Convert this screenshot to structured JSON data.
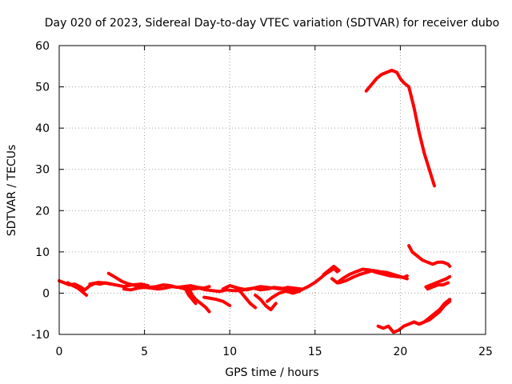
{
  "chart_data": {
    "type": "line",
    "title": "Day 020 of 2023, Sidereal Day-to-day VTEC variation (SDTVAR) for receiver dubo",
    "xlabel": "GPS time / hours",
    "ylabel": "SDTVAR / TECUs",
    "xlim": [
      0,
      25
    ],
    "ylim": [
      -10,
      60
    ],
    "xticks": [
      0,
      5,
      10,
      15,
      20,
      25
    ],
    "yticks": [
      -10,
      0,
      10,
      20,
      30,
      40,
      50,
      60
    ],
    "grid": true,
    "color": "#ff0000",
    "series": [
      {
        "x": [
          0,
          0.3,
          0.6,
          0.9,
          1.2,
          1.5,
          1.8,
          2.1,
          2.4,
          2.7,
          3.0
        ],
        "y": [
          3.0,
          2.5,
          2.0,
          2.2,
          1.6,
          0.8,
          1.8,
          2.4,
          2.2,
          2.5,
          2.2
        ]
      },
      {
        "x": [
          0.5,
          0.8,
          1.1,
          1.4,
          1.6
        ],
        "y": [
          2.5,
          1.8,
          1.2,
          0.2,
          -0.5
        ]
      },
      {
        "x": [
          1.8,
          2.3,
          2.8,
          3.3,
          3.8,
          4.3,
          4.8,
          5.2
        ],
        "y": [
          2.2,
          2.6,
          2.4,
          2.0,
          1.6,
          2.0,
          2.2,
          1.8
        ]
      },
      {
        "x": [
          2.9,
          3.3,
          3.7,
          4.1,
          4.5,
          4.9,
          5.3,
          5.7,
          6.1,
          6.5,
          6.9,
          7.3,
          7.7,
          8.1,
          8.5,
          8.8
        ],
        "y": [
          4.8,
          3.8,
          2.8,
          2.2,
          1.8,
          1.6,
          1.4,
          1.6,
          2.0,
          1.8,
          1.4,
          1.6,
          1.8,
          1.4,
          1.2,
          1.6
        ]
      },
      {
        "x": [
          3.8,
          4.2,
          4.6,
          5.0,
          5.4,
          5.8,
          6.2,
          6.6,
          7.0,
          7.4,
          7.8,
          8.2,
          8.6,
          9.0,
          9.4,
          9.8,
          10.2,
          10.6,
          11.0,
          11.4,
          11.8,
          12.2,
          12.6,
          13.0,
          13.4,
          13.8,
          14.2
        ],
        "y": [
          1.0,
          0.8,
          1.2,
          1.4,
          1.2,
          1.0,
          1.2,
          1.6,
          1.4,
          1.0,
          1.0,
          1.2,
          0.8,
          0.6,
          0.4,
          0.8,
          0.6,
          0.6,
          1.0,
          1.2,
          0.8,
          1.0,
          1.4,
          1.2,
          0.8,
          0.6,
          0.8
        ]
      },
      {
        "x": [
          7.6,
          7.8,
          8.0,
          8.3,
          8.6,
          8.8
        ],
        "y": [
          1.2,
          -0.5,
          -1.5,
          -2.5,
          -3.5,
          -4.5
        ]
      },
      {
        "x": [
          7.4,
          7.6,
          7.8,
          8.0
        ],
        "y": [
          1.0,
          -0.5,
          -1.5,
          -2.5
        ]
      },
      {
        "x": [
          8.5,
          8.8,
          9.2,
          9.6,
          10.0
        ],
        "y": [
          -1.0,
          -1.2,
          -1.5,
          -2.0,
          -3.0
        ]
      },
      {
        "x": [
          9.6,
          10.0,
          10.5,
          11.0,
          11.4,
          11.8,
          12.2,
          12.6,
          13.0,
          13.4,
          13.8,
          14.2
        ],
        "y": [
          1.0,
          1.8,
          1.2,
          0.8,
          1.2,
          1.6,
          1.4,
          1.2,
          1.0,
          1.4,
          1.2,
          1.0
        ]
      },
      {
        "x": [
          10.6,
          10.9,
          11.2,
          11.5
        ],
        "y": [
          0.5,
          -1.0,
          -2.5,
          -3.5
        ]
      },
      {
        "x": [
          11.5,
          11.8,
          12.1,
          12.4,
          12.7
        ],
        "y": [
          -0.5,
          -1.5,
          -3.0,
          -4.0,
          -2.5
        ]
      },
      {
        "x": [
          12.2,
          12.5,
          12.9,
          13.3,
          13.7,
          14.1
        ],
        "y": [
          -2.0,
          -1.0,
          0.0,
          0.5,
          0.0,
          0.5
        ]
      },
      {
        "x": [
          14.2,
          14.6,
          15.0,
          15.3,
          15.6,
          15.9,
          16.1,
          16.3
        ],
        "y": [
          0.8,
          1.6,
          2.6,
          3.6,
          4.6,
          5.4,
          6.0,
          5.2
        ]
      },
      {
        "x": [
          15.5,
          15.8,
          16.1,
          16.4
        ],
        "y": [
          4.5,
          5.5,
          6.5,
          5.5
        ]
      },
      {
        "x": [
          16.0,
          16.3,
          16.6,
          17.0,
          17.4,
          17.8,
          18.2,
          18.6,
          19.0,
          19.4,
          19.8,
          20.2,
          20.4
        ],
        "y": [
          3.5,
          2.5,
          3.5,
          4.5,
          5.2,
          5.8,
          5.6,
          5.0,
          4.6,
          4.2,
          4.0,
          3.8,
          4.2
        ]
      },
      {
        "x": [
          16.4,
          16.8,
          17.2,
          17.6,
          18.0,
          18.4,
          18.8,
          19.2,
          19.6,
          20.0,
          20.4
        ],
        "y": [
          2.5,
          3.0,
          3.8,
          4.5,
          5.0,
          5.5,
          5.2,
          5.0,
          4.5,
          4.0,
          3.5
        ]
      },
      {
        "x": [
          18.0,
          18.3,
          18.6,
          18.9,
          19.2,
          19.5,
          19.8,
          20.0,
          20.2,
          20.5,
          20.8,
          21.1,
          21.4,
          21.7,
          22.0
        ],
        "y": [
          49.0,
          50.5,
          52.0,
          53.0,
          53.5,
          54.0,
          53.5,
          52.0,
          51.0,
          50.0,
          45.0,
          39.0,
          34.0,
          30.0,
          26.0
        ]
      },
      {
        "x": [
          18.7,
          19.0,
          19.3,
          19.6,
          19.9,
          20.2,
          20.5,
          20.8,
          21.1,
          21.4,
          21.7,
          22.0,
          22.3,
          22.6,
          22.9
        ],
        "y": [
          -8.0,
          -8.5,
          -8.0,
          -9.5,
          -9.0,
          -8.0,
          -7.5,
          -7.0,
          -7.5,
          -7.0,
          -6.0,
          -5.0,
          -4.0,
          -2.5,
          -1.5
        ]
      },
      {
        "x": [
          20.8,
          21.1,
          21.4,
          21.7,
          22.0,
          22.3,
          22.6,
          22.9
        ],
        "y": [
          -7.0,
          -7.5,
          -7.0,
          -6.5,
          -5.5,
          -4.5,
          -3.0,
          -2.0
        ]
      },
      {
        "x": [
          20.5,
          20.7,
          21.0,
          21.3,
          21.6,
          21.9,
          22.2,
          22.5,
          22.8,
          22.9
        ],
        "y": [
          11.5,
          10.0,
          9.0,
          8.0,
          7.5,
          7.0,
          7.5,
          7.5,
          7.0,
          6.5
        ]
      },
      {
        "x": [
          21.5,
          21.8,
          22.1,
          22.4,
          22.7,
          22.9
        ],
        "y": [
          1.5,
          2.0,
          2.5,
          3.0,
          3.5,
          4.0
        ]
      },
      {
        "x": [
          21.6,
          21.9,
          22.2,
          22.5,
          22.8
        ],
        "y": [
          1.0,
          1.5,
          2.0,
          2.0,
          2.5
        ]
      }
    ]
  }
}
